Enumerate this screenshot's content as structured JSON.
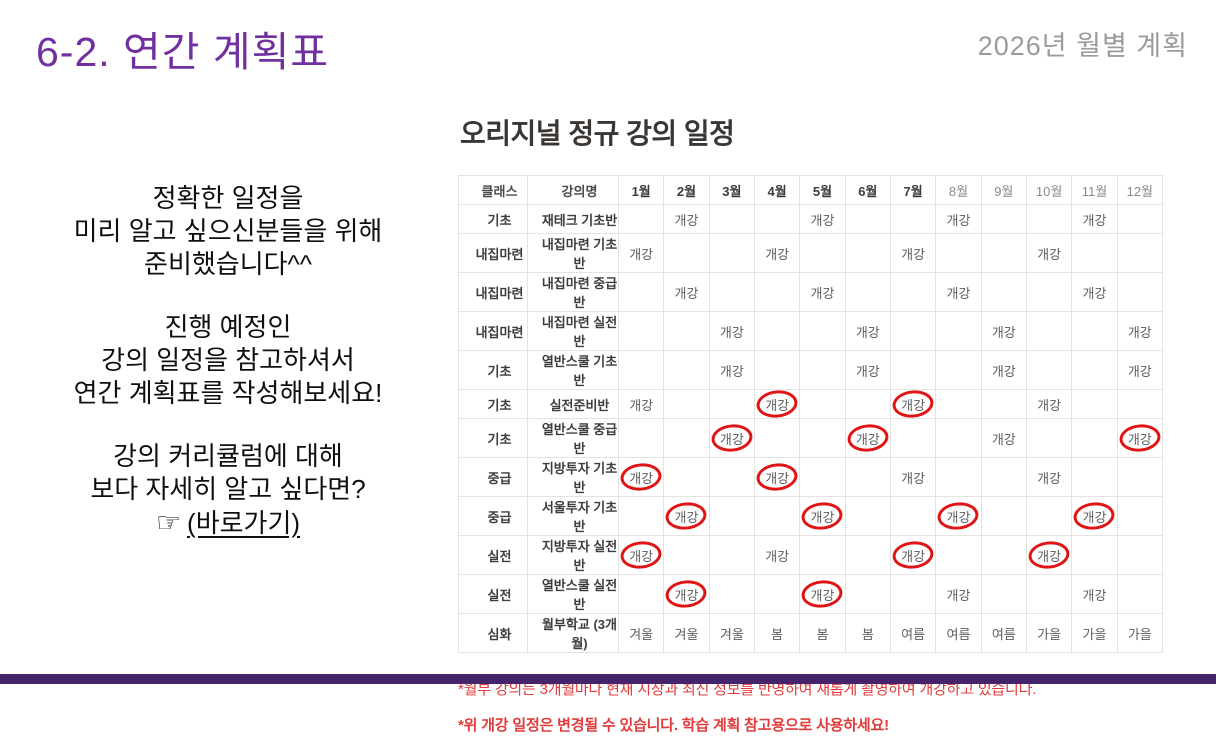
{
  "header": {
    "title": "6-2. 연간 계획표",
    "corner_label": "2026년 월별 계획"
  },
  "left_panel": {
    "paragraphs": [
      [
        "정확한 일정을",
        "미리 알고 싶으신분들을 위해",
        "준비했습니다^^"
      ],
      [
        "진행 예정인",
        "강의 일정을 참고하셔서",
        "연간 계획표를 작성해보세요!"
      ],
      [
        "강의 커리큘럼에 대해",
        "보다 자세히 알고 싶다면?"
      ]
    ],
    "hand_icon": "☞",
    "link_label": "(바로가기)"
  },
  "schedule": {
    "title": "오리지널 정규 강의 일정",
    "columns": [
      "클래스",
      "강의명",
      "1월",
      "2월",
      "3월",
      "4월",
      "5월",
      "6월",
      "7월",
      "8월",
      "9월",
      "10월",
      "11월",
      "12월"
    ],
    "bold_month_columns": 7,
    "open_label": "개강",
    "rows": [
      {
        "class": "기초",
        "course": "재테크 기초반",
        "open_months": [
          2,
          5,
          8,
          11
        ],
        "circled_months": []
      },
      {
        "class": "내집마련",
        "course": "내집마련 기초반",
        "open_months": [
          1,
          4,
          7,
          10
        ],
        "circled_months": []
      },
      {
        "class": "내집마련",
        "course": "내집마련 중급반",
        "open_months": [
          2,
          5,
          8,
          11
        ],
        "circled_months": []
      },
      {
        "class": "내집마련",
        "course": "내집마련 실전반",
        "open_months": [
          3,
          6,
          9,
          12
        ],
        "circled_months": []
      },
      {
        "class": "기초",
        "course": "열반스쿨 기초반",
        "open_months": [
          3,
          6,
          9,
          12
        ],
        "circled_months": []
      },
      {
        "class": "기초",
        "course": "실전준비반",
        "open_months": [
          1,
          4,
          7,
          10
        ],
        "circled_months": [
          4,
          7
        ]
      },
      {
        "class": "기초",
        "course": "열반스쿨 중급반",
        "open_months": [
          3,
          6,
          9,
          12
        ],
        "circled_months": [
          3,
          6,
          12
        ]
      },
      {
        "class": "중급",
        "course": "지방투자 기초반",
        "open_months": [
          1,
          4,
          7,
          10
        ],
        "circled_months": [
          1,
          4
        ]
      },
      {
        "class": "중급",
        "course": "서울투자 기초반",
        "open_months": [
          2,
          5,
          8,
          11
        ],
        "circled_months": [
          2,
          5,
          8,
          11
        ]
      },
      {
        "class": "실전",
        "course": "지방투자 실전반",
        "open_months": [
          1,
          4,
          7,
          10
        ],
        "circled_months": [
          1,
          7,
          10
        ]
      },
      {
        "class": "실전",
        "course": "열반스쿨 실전반",
        "open_months": [
          2,
          5,
          8,
          11
        ],
        "circled_months": [
          2,
          5
        ]
      },
      {
        "class": "심화",
        "course": "월부학교 (3개월)",
        "season_cells": [
          "겨울",
          "겨울",
          "겨울",
          "봄",
          "봄",
          "봄",
          "여름",
          "여름",
          "여름",
          "가을",
          "가을",
          "가을"
        ],
        "circled_months": []
      }
    ]
  },
  "footnotes": [
    {
      "text": "*월부 강의는 3개월마다 현재 시장과 최신 정보를 반영하여 새롭게 촬영하여 개강하고 있습니다.",
      "bold": false
    },
    {
      "text": "*위 개강 일정은 변경될 수 있습니다. 학습 계획 참고용으로 사용하세요!",
      "bold": true
    }
  ],
  "colors": {
    "accent_purple": "#7030a0",
    "bottom_bar_purple": "#46246b",
    "highlight_red": "#e01414",
    "footnote_red": "#e23b3b",
    "course_col_bg": "#fbf2da",
    "class_col_bg": "#f3f3f0"
  }
}
